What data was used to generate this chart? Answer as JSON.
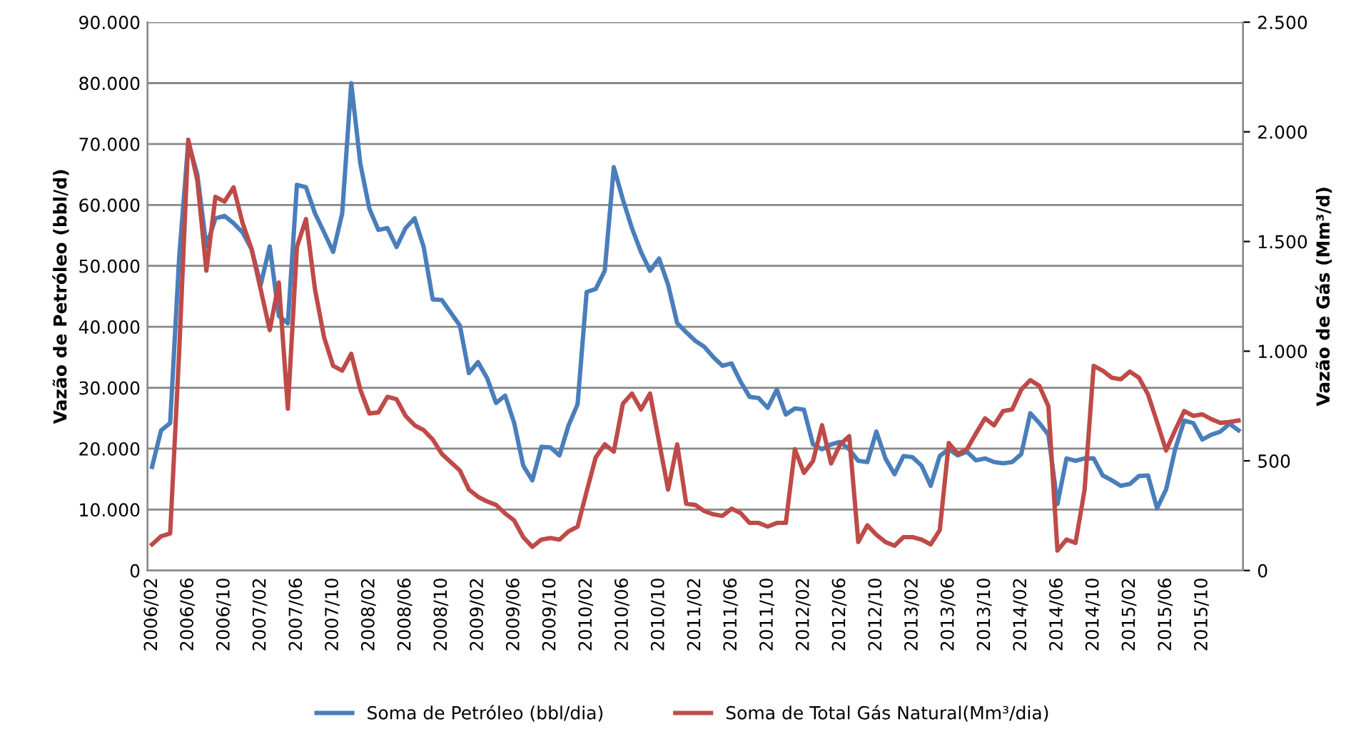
{
  "chart_data": {
    "type": "line",
    "categories": [
      "2006/02",
      null,
      null,
      null,
      "2006/06",
      null,
      null,
      null,
      "2006/10",
      null,
      null,
      null,
      "2007/02",
      null,
      null,
      null,
      "2007/06",
      null,
      null,
      null,
      "2007/10",
      null,
      null,
      null,
      "2008/02",
      null,
      null,
      null,
      "2008/06",
      null,
      null,
      null,
      "2008/10",
      null,
      null,
      null,
      "2009/02",
      null,
      null,
      null,
      "2009/06",
      null,
      null,
      null,
      "2009/10",
      null,
      null,
      null,
      "2010/02",
      null,
      null,
      null,
      "2010/06",
      null,
      null,
      null,
      "2010/10",
      null,
      null,
      null,
      "2011/02",
      null,
      null,
      null,
      "2011/06",
      null,
      null,
      null,
      "2011/10",
      null,
      null,
      null,
      "2012/02",
      null,
      null,
      null,
      "2012/06",
      null,
      null,
      null,
      "2012/10",
      null,
      null,
      null,
      "2013/02",
      null,
      null,
      null,
      "2013/06",
      null,
      null,
      null,
      "2013/10",
      null,
      null,
      null,
      "2014/02",
      null,
      null,
      null,
      "2014/06",
      null,
      null,
      null,
      "2014/10",
      null,
      null,
      null,
      "2015/02",
      null,
      null,
      null,
      "2015/06",
      null,
      null,
      null,
      "2015/10",
      null,
      null,
      null,
      null
    ],
    "series": [
      {
        "name": "Soma de Petróleo (bbl/dia)",
        "color": "#4a7ebb",
        "values": [
          17000,
          23000,
          24200,
          51500,
          70300,
          65000,
          53200,
          57800,
          58200,
          57000,
          55500,
          52700,
          46900,
          53200,
          41800,
          40600,
          63300,
          62900,
          58600,
          55500,
          52300,
          58600,
          80000,
          66800,
          59400,
          55900,
          56200,
          53100,
          56200,
          57800,
          53100,
          44500,
          44400,
          42300,
          40200,
          32400,
          34200,
          31600,
          27500,
          28700,
          24200,
          17200,
          14800,
          20300,
          20200,
          18900,
          23800,
          27300,
          45700,
          46200,
          49200,
          66200,
          60900,
          56200,
          52300,
          49200,
          51200,
          46900,
          40600,
          39100,
          37700,
          36700,
          35000,
          33600,
          34000,
          31000,
          28500,
          28300,
          26700,
          29700,
          25600,
          26600,
          26400,
          20700,
          19900,
          20700,
          21100,
          19900,
          18000,
          17800,
          22800,
          18400,
          15800,
          18800,
          18600,
          17200,
          13900,
          18800,
          19900,
          18900,
          19500,
          18100,
          18400,
          17800,
          17600,
          17800,
          19100,
          25800,
          24200,
          22300,
          10900,
          18400,
          18000,
          18400,
          18400,
          15600,
          14800,
          13900,
          14200,
          15500,
          15600,
          10200,
          13300,
          19900,
          24600,
          24200,
          21500,
          22300,
          22800,
          24100,
          23000
        ]
      },
      {
        "name": "Soma de Total Gás Natural(Mm³/dia)",
        "color": "#be4b48",
        "axis": "y2",
        "values": [
          119,
          156,
          169,
          1000,
          1964,
          1779,
          1367,
          1704,
          1682,
          1747,
          1584,
          1465,
          1281,
          1096,
          1313,
          738,
          1476,
          1602,
          1281,
          1063,
          933,
          911,
          988,
          825,
          716,
          721,
          792,
          781,
          705,
          662,
          640,
          597,
          532,
          494,
          456,
          369,
          336,
          315,
          299,
          260,
          228,
          152,
          108,
          141,
          148,
          141,
          178,
          200,
          360,
          516,
          575,
          542,
          760,
          807,
          734,
          807,
          586,
          369,
          575,
          304,
          299,
          271,
          256,
          249,
          282,
          262,
          217,
          217,
          200,
          217,
          217,
          553,
          445,
          499,
          662,
          488,
          575,
          612,
          130,
          206,
          163,
          130,
          113,
          152,
          152,
          141,
          119,
          184,
          581,
          532,
          553,
          625,
          694,
          662,
          727,
          734,
          825,
          868,
          842,
          749,
          91,
          141,
          126,
          369,
          933,
          911,
          879,
          872,
          907,
          879,
          803,
          677,
          547,
          640,
          727,
          705,
          712,
          690,
          673,
          677,
          684
        ]
      }
    ],
    "ylabel": "Vazão de Petróleo (bbl/d)",
    "y2label": "Vazão de Gás (Mm³/d)",
    "ylim": [
      0,
      90000
    ],
    "yticks": [
      0,
      {
        "value": 10000,
        "label": "10.000"
      },
      {
        "value": 20000,
        "label": "20.000"
      },
      {
        "value": 30000,
        "label": "30.000"
      },
      {
        "value": 40000,
        "label": "40.000"
      },
      {
        "value": 50000,
        "label": "50.000"
      },
      {
        "value": 60000,
        "label": "60.000"
      },
      {
        "value": 70000,
        "label": "70.000"
      },
      {
        "value": 80000,
        "label": "80.000"
      },
      {
        "value": 90000,
        "label": "90.000"
      }
    ],
    "y2lim": [
      0,
      2500
    ],
    "y2ticks": [
      0,
      500,
      {
        "value": 1000,
        "label": "1.000"
      },
      {
        "value": 1500,
        "label": "1.500"
      },
      {
        "value": 2000,
        "label": "2.000"
      },
      {
        "value": 2500,
        "label": "2.500"
      }
    ],
    "grid": "y",
    "legend": "bottom",
    "marker": "none",
    "line_style": "solid"
  }
}
